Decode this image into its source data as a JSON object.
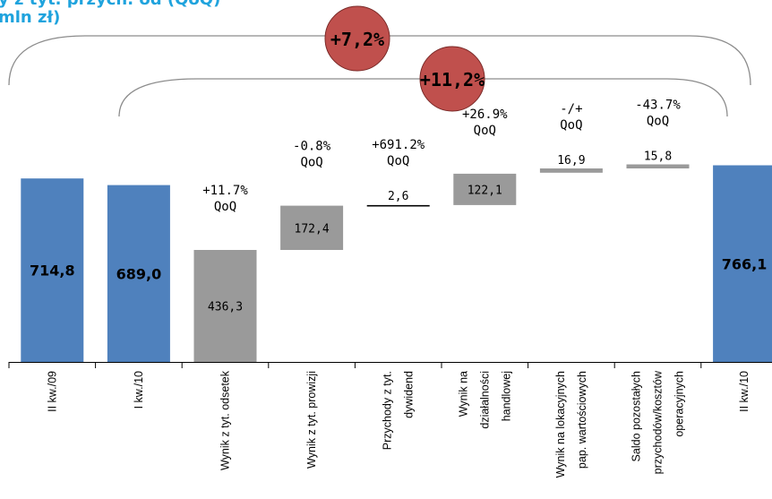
{
  "title": {
    "line1": "y z tyt. przych. od (QoQ)",
    "line2": "mln zł)"
  },
  "brackets": [
    {
      "label": "+7,2%"
    },
    {
      "label": "+11,2%"
    }
  ],
  "colors": {
    "blue": "#4f81bd",
    "gray": "#9a9a9a",
    "circle": "#c0504d",
    "title": "#1fa3dd"
  },
  "chart_data": {
    "type": "bar",
    "subtype": "waterfall",
    "categories": [
      "II kw./09",
      "I kw./10",
      "Wynik z tyt. odsetek",
      "Wynik z tyt. prowizji",
      "Przychody z tyt. dywidend",
      "Wynik na działalności handlowej",
      "Wynik na lokacyjnych pap. wartościowych",
      "Saldo pozostałych przychodów/kosztów operacyjnych",
      "II kw./10"
    ],
    "category_lines": [
      [
        "II kw./09"
      ],
      [
        "I kw./10"
      ],
      [
        "Wynik z tyt. odsetek"
      ],
      [
        "Wynik z tyt. prowizji"
      ],
      [
        "Przychody z tyt.",
        "dywidend"
      ],
      [
        "Wynik na",
        "działalności",
        "handlowej"
      ],
      [
        "Wynik na lokacyjnych",
        "pap. wartościowych"
      ],
      [
        "Saldo pozostałych",
        "przychodów/kosztów",
        "operacyjnych"
      ],
      [
        "II kw./10"
      ]
    ],
    "bars": [
      {
        "kind": "total",
        "start": 0,
        "end": 714.8,
        "label": "714,8"
      },
      {
        "kind": "total",
        "start": 0,
        "end": 689.0,
        "label": "689,0"
      },
      {
        "kind": "component",
        "start": 0,
        "end": 436.3,
        "label": "436,3",
        "qoq": "+11.7%"
      },
      {
        "kind": "component",
        "start": 436.3,
        "end": 608.7,
        "label": "172,4",
        "qoq": "-0.8%"
      },
      {
        "kind": "component",
        "start": 608.7,
        "end": 611.3,
        "label": "2,6",
        "qoq": "+691.2%"
      },
      {
        "kind": "component",
        "start": 611.3,
        "end": 733.4,
        "label": "122,1",
        "qoq": "+26.9%"
      },
      {
        "kind": "component",
        "start": 733.4,
        "end": 750.3,
        "label": "16,9",
        "qoq": "-/+"
      },
      {
        "kind": "component",
        "start": 750.3,
        "end": 766.1,
        "label": "15,8",
        "qoq": "-43.7%"
      },
      {
        "kind": "total",
        "start": 0,
        "end": 766.1,
        "label": "766,1"
      }
    ],
    "qoq_suffix": "QoQ",
    "ylim": [
      0,
      766.1
    ]
  }
}
